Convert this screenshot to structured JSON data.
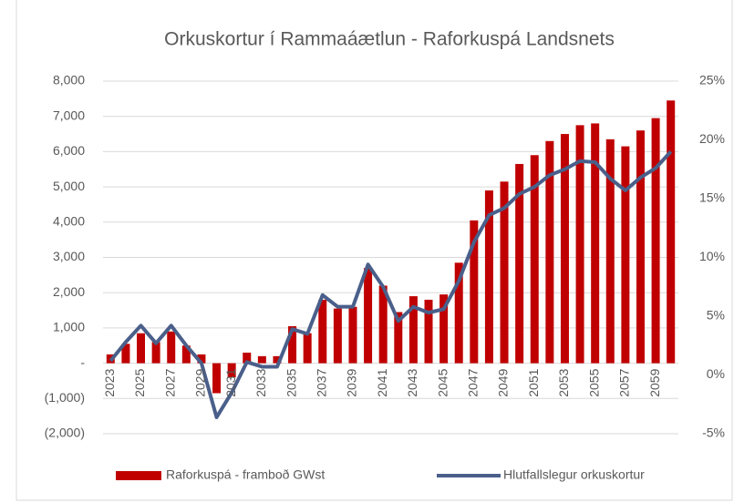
{
  "chart_data": {
    "type": "bar_line",
    "title": "Orkuskortur í Rammaáætlun - Raforkuspá Landsnets",
    "categories": [
      "2023",
      null,
      "2025",
      null,
      "2027",
      null,
      "2029",
      null,
      "2031",
      null,
      "2033",
      null,
      "2035",
      null,
      "2037",
      null,
      "2039",
      null,
      "2041",
      null,
      "2043",
      null,
      "2045",
      null,
      "2047",
      null,
      "2049",
      null,
      "2051",
      null,
      "2053",
      null,
      "2055",
      null,
      "2057",
      null,
      "2059",
      null
    ],
    "series": [
      {
        "name": "Raforkuspá - framboð GWst",
        "type": "bar",
        "color": "#c00000",
        "axis": "y",
        "values": [
          250,
          550,
          850,
          600,
          900,
          500,
          250,
          -850,
          -400,
          300,
          200,
          200,
          1050,
          850,
          1800,
          1550,
          1600,
          2700,
          2200,
          1450,
          1900,
          1800,
          1950,
          2850,
          4050,
          4900,
          5150,
          5650,
          5900,
          6300,
          6500,
          6750,
          6800,
          6350,
          6150,
          6600,
          6950,
          7450
        ]
      },
      {
        "name": "Hlutfallslegur orkuskortur",
        "type": "line",
        "color": "#4a5f8a",
        "axis": "y2",
        "values": [
          1.2,
          2.8,
          4.2,
          2.7,
          4.2,
          2.5,
          1.0,
          -3.6,
          -1.5,
          1.1,
          0.7,
          0.7,
          3.9,
          3.5,
          6.8,
          5.8,
          5.8,
          9.4,
          7.5,
          4.6,
          5.8,
          5.3,
          5.6,
          8.0,
          11.3,
          13.6,
          14.2,
          15.4,
          16.0,
          17.0,
          17.5,
          18.2,
          18.1,
          16.7,
          15.7,
          16.8,
          17.6,
          19.0
        ]
      }
    ],
    "ylim": [
      -2000,
      8000
    ],
    "yticks": [
      {
        "value": -2000,
        "label": "(2,000)"
      },
      {
        "value": -1000,
        "label": "(1,000)"
      },
      {
        "value": 0,
        "label": "-"
      },
      {
        "value": 1000,
        "label": "1,000"
      },
      {
        "value": 2000,
        "label": "2,000"
      },
      {
        "value": 3000,
        "label": "3,000"
      },
      {
        "value": 4000,
        "label": "4,000"
      },
      {
        "value": 5000,
        "label": "5,000"
      },
      {
        "value": 6000,
        "label": "6,000"
      },
      {
        "value": 7000,
        "label": "7,000"
      },
      {
        "value": 8000,
        "label": "8,000"
      }
    ],
    "y2lim": [
      -5,
      25
    ],
    "y2ticks": [
      {
        "value": -5,
        "label": "-5%"
      },
      {
        "value": 0,
        "label": "0%"
      },
      {
        "value": 5,
        "label": "5%"
      },
      {
        "value": 10,
        "label": "10%"
      },
      {
        "value": 15,
        "label": "15%"
      },
      {
        "value": 20,
        "label": "20%"
      },
      {
        "value": 25,
        "label": "25%"
      }
    ],
    "grid": true,
    "legend": "bottom"
  }
}
